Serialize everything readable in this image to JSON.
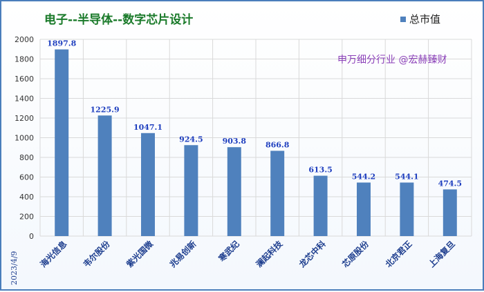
{
  "chart_data": {
    "type": "bar",
    "title": "电子--半导体--数字芯片设计",
    "categories": [
      "海光信息",
      "韦尔股份",
      "紫光国微",
      "兆易创新",
      "寒武纪",
      "澜起科技",
      "龙芯中科",
      "芯原股份",
      "北京君正",
      "上海复旦"
    ],
    "series": [
      {
        "name": "总市值",
        "values": [
          1897.8,
          1225.9,
          1047.1,
          924.5,
          903.8,
          866.8,
          613.5,
          544.2,
          544.1,
          474.5
        ]
      }
    ],
    "ylim": [
      0,
      2000
    ],
    "yticks": [
      0,
      200,
      400,
      600,
      800,
      1000,
      1200,
      1400,
      1600,
      1800,
      2000
    ],
    "grid": true,
    "legend_position": "top-right",
    "bar_color": "#4f81bd",
    "annotation": "申万细分行业 @宏赫臻财",
    "date_label": "2023/4/9"
  }
}
